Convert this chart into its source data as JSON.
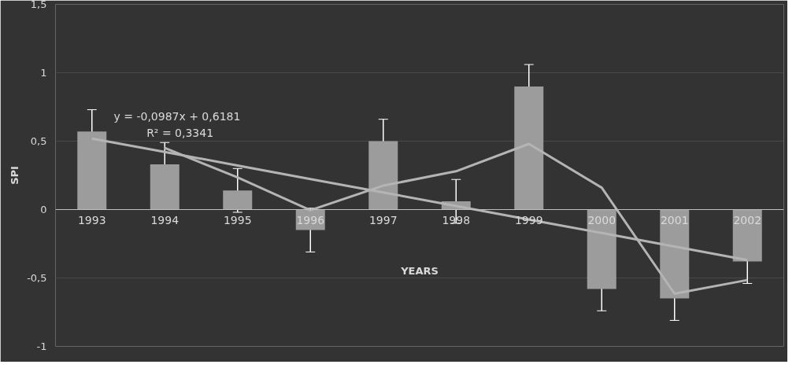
{
  "chart_data": {
    "type": "bar",
    "xlabel": "YEARS",
    "ylabel": "SPI",
    "categories": [
      "1993",
      "1994",
      "1995",
      "1996",
      "1997",
      "1998",
      "1999",
      "2000",
      "2001",
      "2002"
    ],
    "series": [
      {
        "color": "#9c9c9c",
        "values": [
          0.57,
          0.33,
          0.14,
          -0.15,
          0.5,
          0.06,
          0.9,
          -0.58,
          -0.65,
          -0.38
        ],
        "errors": [
          0.16,
          0.16,
          0.16,
          0.16,
          0.16,
          0.16,
          0.16,
          0.16,
          0.16,
          0.16
        ]
      },
      {
        "type": "line",
        "color": "#b4b4b4",
        "values": [
          null,
          0.45,
          0.235,
          -0.005,
          0.175,
          0.28,
          0.48,
          0.16,
          -0.615,
          -0.515
        ]
      },
      {
        "type": "line",
        "color": "#b4b4b4",
        "values": [
          0.519,
          0.421,
          0.322,
          0.223,
          0.125,
          0.026,
          -0.073,
          -0.171,
          -0.27,
          -0.369
        ]
      }
    ],
    "annotations": [
      "y = -0,0987x + 0,6181",
      "R² = 0,3341"
    ],
    "ylim": [
      -1,
      1.5
    ],
    "yticks": [
      {
        "value": -1,
        "label": "-1"
      },
      {
        "value": -0.5,
        "label": "-0,5"
      },
      {
        "value": 0,
        "label": "0"
      },
      {
        "value": 0.5,
        "label": "0,5"
      },
      {
        "value": 1,
        "label": "1"
      },
      {
        "value": 1.5,
        "label": "1,5"
      }
    ],
    "grid": "y"
  }
}
